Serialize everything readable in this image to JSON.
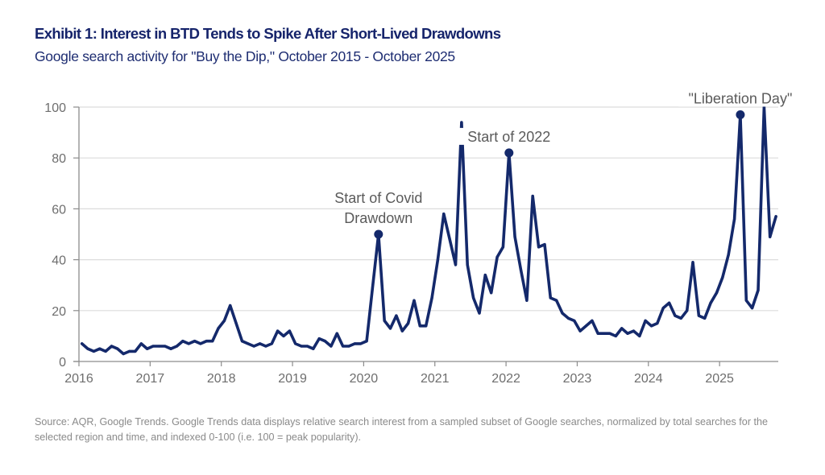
{
  "header": {
    "title": "Exhibit 1: Interest in BTD Tends to Spike After Short-Lived Drawdowns",
    "subtitle": "Google search activity for \"Buy the Dip,\" October 2015 - October 2025"
  },
  "footer": {
    "source": "Source: AQR, Google Trends. Google Trends data displays relative search interest from a sampled subset of Google searches, normalized by total searches for the selected region and time, and indexed 0-100 (i.e. 100 = peak popularity)."
  },
  "colors": {
    "line": "#14296b",
    "title": "#16246b",
    "grid": "#dcdcdc",
    "axis": "#8c8c8c",
    "tick_text": "#6e6e6e",
    "annotation_text": "#5a5a5a"
  },
  "chart_data": {
    "type": "line",
    "title": "Exhibit 1: Interest in BTD Tends to Spike After Short-Lived Drawdowns",
    "subtitle": "Google search activity for \"Buy the Dip,\" October 2015 - October 2025",
    "xlabel": "",
    "ylabel": "",
    "x_start": "2016-01",
    "x_frequency": "monthly",
    "xlim": [
      2016,
      2025.833
    ],
    "ylim": [
      0,
      100
    ],
    "x_ticks": [
      "2016",
      "2017",
      "2018",
      "2019",
      "2020",
      "2021",
      "2022",
      "2023",
      "2024",
      "2025"
    ],
    "y_ticks": [
      0,
      20,
      40,
      60,
      80,
      100
    ],
    "grid": "horizontal",
    "legend": "none",
    "series": [
      {
        "name": "Buy the Dip",
        "values": [
          7,
          5,
          4,
          5,
          4,
          6,
          5,
          3,
          4,
          4,
          7,
          5,
          6,
          6,
          6,
          5,
          6,
          8,
          7,
          8,
          7,
          8,
          8,
          13,
          16,
          22,
          15,
          8,
          7,
          6,
          7,
          6,
          7,
          12,
          10,
          12,
          7,
          6,
          6,
          5,
          9,
          8,
          6,
          11,
          6,
          6,
          7,
          7,
          8,
          29,
          50,
          16,
          13,
          18,
          12,
          15,
          24,
          14,
          14,
          25,
          40,
          58,
          48,
          38,
          94,
          38,
          25,
          19,
          34,
          27,
          41,
          45,
          82,
          49,
          36,
          24,
          65,
          45,
          46,
          25,
          24,
          19,
          17,
          16,
          12,
          14,
          16,
          11,
          11,
          11,
          10,
          13,
          11,
          12,
          10,
          16,
          14,
          15,
          21,
          23,
          18,
          17,
          20,
          39,
          18,
          17,
          23,
          27,
          33,
          42,
          56,
          97,
          24,
          21,
          28,
          100,
          49,
          57
        ]
      }
    ],
    "annotations": [
      {
        "label_lines": [
          "Start of Covid",
          "Drawdown"
        ],
        "index": 50,
        "value": 50
      },
      {
        "label_lines": [
          "Start of 2022"
        ],
        "index": 72,
        "value": 82
      },
      {
        "label_lines": [
          "\"Liberation Day\""
        ],
        "index": 111,
        "value": 97
      }
    ]
  }
}
